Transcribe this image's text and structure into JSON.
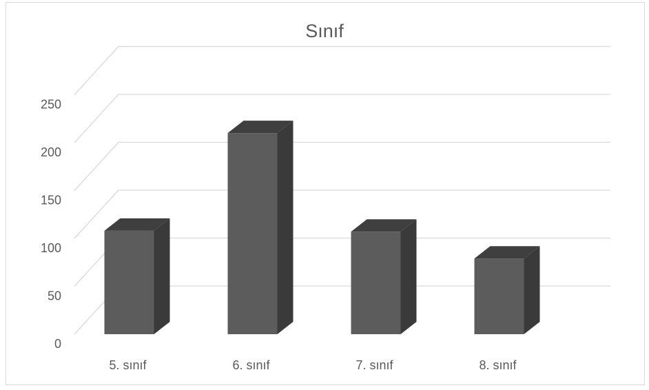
{
  "chart_data": {
    "type": "bar",
    "title": "Sınıf",
    "categories": [
      "5. sınıf",
      "6. sınıf",
      "7. sınıf",
      "8. sınıf"
    ],
    "values": [
      108,
      210,
      107,
      79
    ],
    "ylim": [
      0,
      250
    ],
    "yticks": [
      "0",
      "50",
      "100",
      "150",
      "200",
      "250"
    ],
    "grid": true,
    "style": "3d-column",
    "colors": {
      "bar_front": "#5c5c5c",
      "bar_top": "#3f3f3f",
      "bar_side": "#3a3a3a",
      "grid": "#d9d9d9",
      "text": "#595959"
    }
  }
}
